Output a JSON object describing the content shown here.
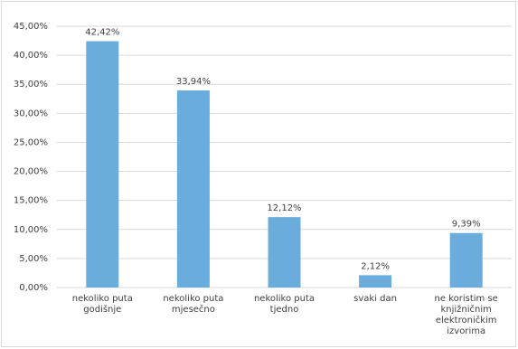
{
  "chart_data": {
    "type": "bar",
    "categories": [
      "nekoliko puta godišnje",
      "nekoliko puta mjesečno",
      "nekoliko puta tjedno",
      "svaki dan",
      "ne koristim se knjižničnim elektroničkim izvorima"
    ],
    "values": [
      42.42,
      33.94,
      12.12,
      2.12,
      9.39
    ],
    "value_labels": [
      "42,42%",
      "33,94%",
      "12,12%",
      "2,12%",
      "9,39%"
    ],
    "color": "#6aacdc",
    "ylim": [
      0,
      45
    ],
    "yticks": [
      {
        "value": 0,
        "label": "0,00%"
      },
      {
        "value": 5,
        "label": "5,00%"
      },
      {
        "value": 10,
        "label": "10,00%"
      },
      {
        "value": 15,
        "label": "15,00%"
      },
      {
        "value": 20,
        "label": "20,00%"
      },
      {
        "value": 25,
        "label": "25,00%"
      },
      {
        "value": 30,
        "label": "30,00%"
      },
      {
        "value": 35,
        "label": "35,00%"
      },
      {
        "value": 40,
        "label": "40,00%"
      },
      {
        "value": 45,
        "label": "45,00%"
      }
    ],
    "grid": true
  }
}
